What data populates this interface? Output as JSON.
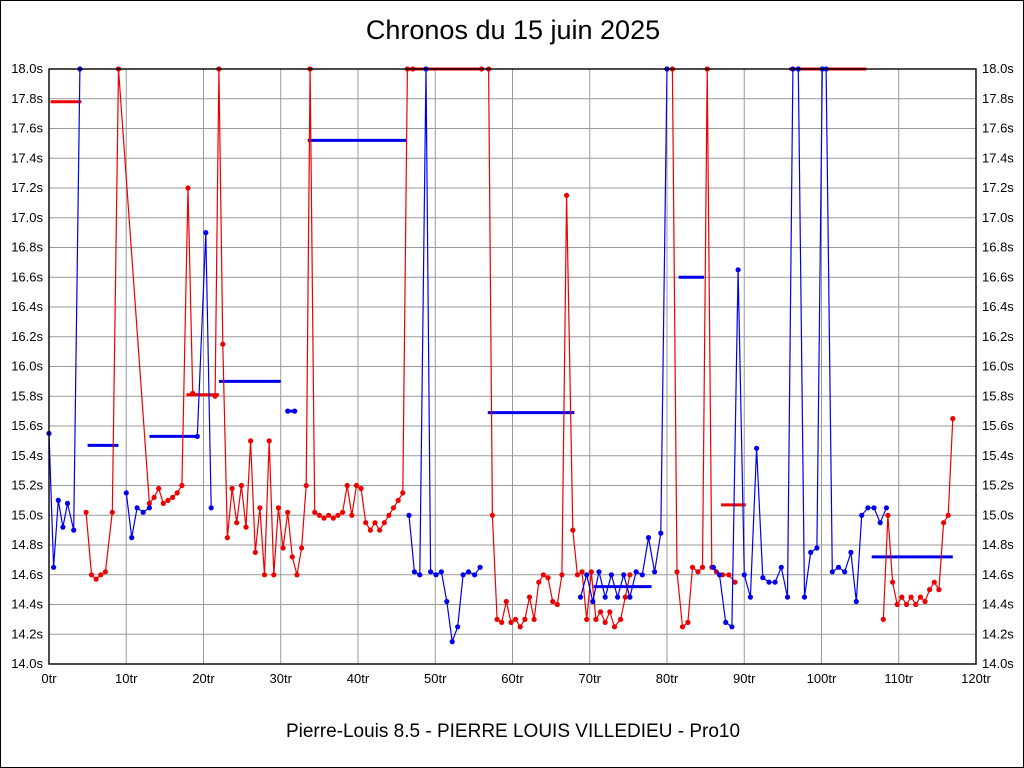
{
  "chart_data": {
    "type": "line",
    "title": "Chronos du 15 juin 2025",
    "subtitle": "Pierre-Louis 8.5 - PIERRE LOUIS VILLEDIEU - Pro10",
    "x_range": [
      0,
      120
    ],
    "y_range": [
      14.0,
      18.0
    ],
    "x_tick_step": 10,
    "y_tick_step": 0.2,
    "x_axis_unit": "tr",
    "y_axis_unit": "s",
    "grid": true,
    "grid_color": "#999999",
    "frame_color": "#000000",
    "x_tick_labels": [
      "0tr",
      "10tr",
      "20tr",
      "30tr",
      "40tr",
      "50tr",
      "60tr",
      "70tr",
      "80tr",
      "90tr",
      "100tr",
      "110tr",
      "120tr"
    ],
    "y_tick_labels": [
      "14.0s",
      "14.2s",
      "14.4s",
      "14.6s",
      "14.8s",
      "15.0s",
      "15.2s",
      "15.4s",
      "15.6s",
      "15.8s",
      "16.0s",
      "16.2s",
      "16.4s",
      "16.6s",
      "16.8s",
      "17.0s",
      "17.2s",
      "17.4s",
      "17.6s",
      "17.8s",
      "18.0s"
    ],
    "colors": {
      "red": "#ee0000",
      "blue": "#0000ee"
    },
    "series": [
      {
        "name": "laps-red",
        "color": "#ee0000",
        "segments": [
          [
            [
              4.8,
              15.02
            ],
            [
              5.5,
              14.6
            ],
            [
              6.1,
              14.57
            ],
            [
              6.7,
              14.6
            ],
            [
              7.3,
              14.62
            ],
            [
              8.2,
              15.02
            ],
            [
              9,
              18
            ],
            [
              13,
              15.08
            ],
            [
              13.6,
              15.12
            ],
            [
              14.2,
              15.18
            ],
            [
              14.8,
              15.08
            ],
            [
              15.4,
              15.1
            ],
            [
              16,
              15.12
            ],
            [
              16.6,
              15.15
            ],
            [
              17.2,
              15.2
            ],
            [
              18,
              17.2
            ],
            [
              18.6,
              15.82
            ],
            [
              21.5,
              15.8
            ],
            [
              22,
              18
            ],
            [
              22.5,
              16.15
            ],
            [
              23.1,
              14.85
            ],
            [
              23.7,
              15.18
            ],
            [
              24.3,
              14.95
            ],
            [
              24.9,
              15.2
            ],
            [
              25.5,
              14.92
            ],
            [
              26.1,
              15.5
            ],
            [
              26.7,
              14.75
            ],
            [
              27.3,
              15.05
            ],
            [
              27.9,
              14.6
            ],
            [
              28.5,
              15.5
            ],
            [
              29.1,
              14.6
            ],
            [
              29.7,
              15.05
            ],
            [
              30.3,
              14.78
            ],
            [
              30.9,
              15.02
            ],
            [
              31.5,
              14.72
            ],
            [
              32.1,
              14.6
            ],
            [
              32.7,
              14.78
            ],
            [
              33.3,
              15.2
            ],
            [
              33.8,
              18
            ],
            [
              34.4,
              15.02
            ],
            [
              35,
              15.0
            ],
            [
              35.6,
              14.98
            ],
            [
              36.2,
              15.0
            ],
            [
              36.8,
              14.98
            ],
            [
              37.4,
              15.0
            ],
            [
              38,
              15.02
            ],
            [
              38.6,
              15.2
            ],
            [
              39.2,
              15.0
            ],
            [
              39.8,
              15.2
            ],
            [
              40.4,
              15.18
            ],
            [
              41,
              14.95
            ],
            [
              41.6,
              14.9
            ],
            [
              42.2,
              14.95
            ],
            [
              42.8,
              14.9
            ],
            [
              43.4,
              14.95
            ],
            [
              44,
              15.0
            ],
            [
              44.6,
              15.05
            ],
            [
              45.2,
              15.1
            ],
            [
              45.8,
              15.15
            ],
            [
              46.4,
              18
            ],
            [
              47.1,
              18
            ]
          ],
          [
            [
              56,
              18
            ],
            [
              56.9,
              18
            ],
            [
              57.4,
              15.0
            ],
            [
              58,
              14.3
            ],
            [
              58.6,
              14.28
            ],
            [
              59.2,
              14.42
            ],
            [
              59.8,
              14.28
            ],
            [
              60.4,
              14.3
            ],
            [
              61,
              14.25
            ],
            [
              61.6,
              14.3
            ],
            [
              62.2,
              14.45
            ],
            [
              62.8,
              14.3
            ],
            [
              63.4,
              14.55
            ],
            [
              64,
              14.6
            ],
            [
              64.6,
              14.58
            ],
            [
              65.2,
              14.42
            ],
            [
              65.8,
              14.4
            ],
            [
              66.4,
              14.6
            ],
            [
              67,
              17.15
            ],
            [
              67.8,
              14.9
            ],
            [
              68.4,
              14.6
            ],
            [
              69,
              14.62
            ],
            [
              69.6,
              14.3
            ],
            [
              70.2,
              14.62
            ],
            [
              70.8,
              14.3
            ],
            [
              71.4,
              14.35
            ],
            [
              72,
              14.28
            ],
            [
              72.6,
              14.35
            ],
            [
              73.2,
              14.25
            ],
            [
              74,
              14.3
            ],
            [
              74.6,
              14.45
            ],
            [
              75.2,
              14.6
            ]
          ],
          [
            [
              80.7,
              18
            ],
            [
              81.3,
              14.62
            ],
            [
              82,
              14.25
            ],
            [
              82.7,
              14.28
            ],
            [
              83.3,
              14.65
            ],
            [
              84,
              14.62
            ],
            [
              84.6,
              14.65
            ],
            [
              85.2,
              18
            ],
            [
              85.8,
              14.65
            ],
            [
              86.4,
              14.62
            ],
            [
              87.2,
              14.6
            ],
            [
              88,
              14.6
            ],
            [
              88.8,
              14.55
            ]
          ],
          [
            [
              108,
              14.3
            ],
            [
              108.6,
              15.0
            ],
            [
              109.2,
              14.55
            ],
            [
              109.8,
              14.4
            ],
            [
              110.4,
              14.45
            ],
            [
              111,
              14.4
            ],
            [
              111.6,
              14.45
            ],
            [
              112.2,
              14.4
            ],
            [
              112.8,
              14.45
            ],
            [
              113.4,
              14.42
            ],
            [
              114,
              14.5
            ],
            [
              114.6,
              14.55
            ],
            [
              115.2,
              14.5
            ],
            [
              115.8,
              14.95
            ],
            [
              116.4,
              15.0
            ],
            [
              117,
              15.65
            ]
          ]
        ]
      },
      {
        "name": "laps-blue",
        "color": "#0000ee",
        "segments": [
          [
            [
              0,
              15.55
            ],
            [
              0.6,
              14.65
            ],
            [
              1.2,
              15.1
            ],
            [
              1.8,
              14.92
            ],
            [
              2.4,
              15.08
            ],
            [
              3.2,
              14.9
            ],
            [
              4,
              18
            ]
          ],
          [
            [
              10,
              15.15
            ],
            [
              10.7,
              14.85
            ],
            [
              11.4,
              15.05
            ],
            [
              12.2,
              15.02
            ],
            [
              13,
              15.05
            ]
          ],
          [
            [
              19.2,
              15.53
            ],
            [
              20.3,
              16.9
            ],
            [
              21,
              15.05
            ]
          ],
          [
            [
              30.9,
              15.7
            ],
            [
              31.8,
              15.7
            ]
          ],
          [
            [
              46.6,
              15.0
            ],
            [
              47.3,
              14.62
            ],
            [
              48,
              14.6
            ],
            [
              48.8,
              18
            ],
            [
              49.4,
              14.62
            ],
            [
              50.1,
              14.6
            ],
            [
              50.8,
              14.62
            ],
            [
              51.5,
              14.42
            ],
            [
              52.2,
              14.15
            ],
            [
              52.9,
              14.25
            ],
            [
              53.6,
              14.6
            ],
            [
              54.3,
              14.62
            ],
            [
              55.1,
              14.6
            ],
            [
              55.8,
              14.65
            ]
          ],
          [
            [
              68.8,
              14.45
            ],
            [
              69.6,
              14.6
            ],
            [
              70.4,
              14.42
            ],
            [
              71.2,
              14.62
            ],
            [
              72,
              14.45
            ],
            [
              72.8,
              14.6
            ],
            [
              73.6,
              14.45
            ],
            [
              74.4,
              14.6
            ],
            [
              75.2,
              14.45
            ],
            [
              76,
              14.62
            ],
            [
              76.8,
              14.6
            ],
            [
              77.6,
              14.85
            ],
            [
              78.4,
              14.62
            ],
            [
              79.2,
              14.88
            ],
            [
              80,
              18
            ]
          ],
          [
            [
              86,
              14.65
            ],
            [
              86.8,
              14.6
            ],
            [
              87.6,
              14.28
            ],
            [
              88.4,
              14.25
            ],
            [
              89.2,
              16.65
            ],
            [
              90,
              14.6
            ],
            [
              90.8,
              14.45
            ],
            [
              91.6,
              15.45
            ],
            [
              92.4,
              14.58
            ],
            [
              93.2,
              14.55
            ],
            [
              94,
              14.55
            ],
            [
              94.8,
              14.65
            ],
            [
              95.6,
              14.45
            ],
            [
              96.3,
              18
            ],
            [
              97,
              18
            ],
            [
              97.8,
              14.45
            ],
            [
              98.6,
              14.75
            ],
            [
              99.4,
              14.78
            ],
            [
              100.1,
              18
            ],
            [
              100.6,
              18
            ],
            [
              101.4,
              14.62
            ],
            [
              102.2,
              14.65
            ],
            [
              103,
              14.62
            ],
            [
              103.8,
              14.75
            ],
            [
              104.5,
              14.42
            ],
            [
              105.2,
              15.0
            ],
            [
              106,
              15.05
            ],
            [
              106.8,
              15.05
            ],
            [
              107.6,
              14.95
            ],
            [
              108.4,
              15.05
            ]
          ]
        ]
      }
    ],
    "avg_segments": [
      {
        "color": "#ee0000",
        "x1": 0.2,
        "x2": 4.2,
        "y": 17.78
      },
      {
        "color": "#0000ee",
        "x1": 5,
        "x2": 9,
        "y": 15.47
      },
      {
        "color": "#0000ee",
        "x1": 13,
        "x2": 19,
        "y": 15.53
      },
      {
        "color": "#ee0000",
        "x1": 17.8,
        "x2": 22,
        "y": 15.81
      },
      {
        "color": "#0000ee",
        "x1": 22,
        "x2": 30,
        "y": 15.9
      },
      {
        "color": "#0000ee",
        "x1": 30.9,
        "x2": 32,
        "y": 15.7
      },
      {
        "color": "#0000ee",
        "x1": 33.5,
        "x2": 46.3,
        "y": 17.52
      },
      {
        "color": "#ee0000",
        "x1": 46.5,
        "x2": 56,
        "y": 18.0
      },
      {
        "color": "#0000ee",
        "x1": 56.8,
        "x2": 68,
        "y": 15.69
      },
      {
        "color": "#0000ee",
        "x1": 70.5,
        "x2": 78,
        "y": 14.52
      },
      {
        "color": "#0000ee",
        "x1": 81.5,
        "x2": 84.8,
        "y": 16.6
      },
      {
        "color": "#ee0000",
        "x1": 87,
        "x2": 90.2,
        "y": 15.07
      },
      {
        "color": "#ee0000",
        "x1": 95.8,
        "x2": 105.8,
        "y": 18.0
      },
      {
        "color": "#0000ee",
        "x1": 106.5,
        "x2": 117,
        "y": 14.72
      }
    ]
  }
}
